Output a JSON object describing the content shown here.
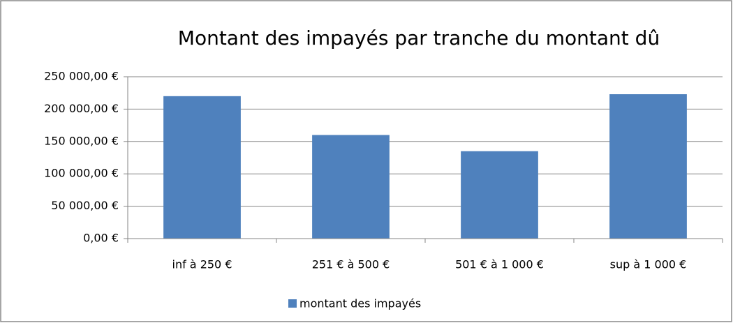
{
  "chart_data": {
    "type": "bar",
    "title": "Montant des impayés par tranche du montant dû",
    "categories": [
      "inf à 250 €",
      "251 € à 500 €",
      "501 € à 1 000 €",
      "sup à 1 000 €"
    ],
    "series": [
      {
        "name": "montant des impayés",
        "color": "#4f81bd",
        "values": [
          220000,
          160000,
          135000,
          223000
        ]
      }
    ],
    "ylim": [
      0,
      250000
    ],
    "yticks": [
      {
        "value": 0,
        "label": "0,00 €"
      },
      {
        "value": 50000,
        "label": "50 000,00 €"
      },
      {
        "value": 100000,
        "label": "100 000,00 €"
      },
      {
        "value": 150000,
        "label": "150 000,00 €"
      },
      {
        "value": 200000,
        "label": "200 000,00 €"
      },
      {
        "value": 250000,
        "label": "250 000,00 €"
      }
    ],
    "grid": true,
    "legend": "bottom"
  }
}
